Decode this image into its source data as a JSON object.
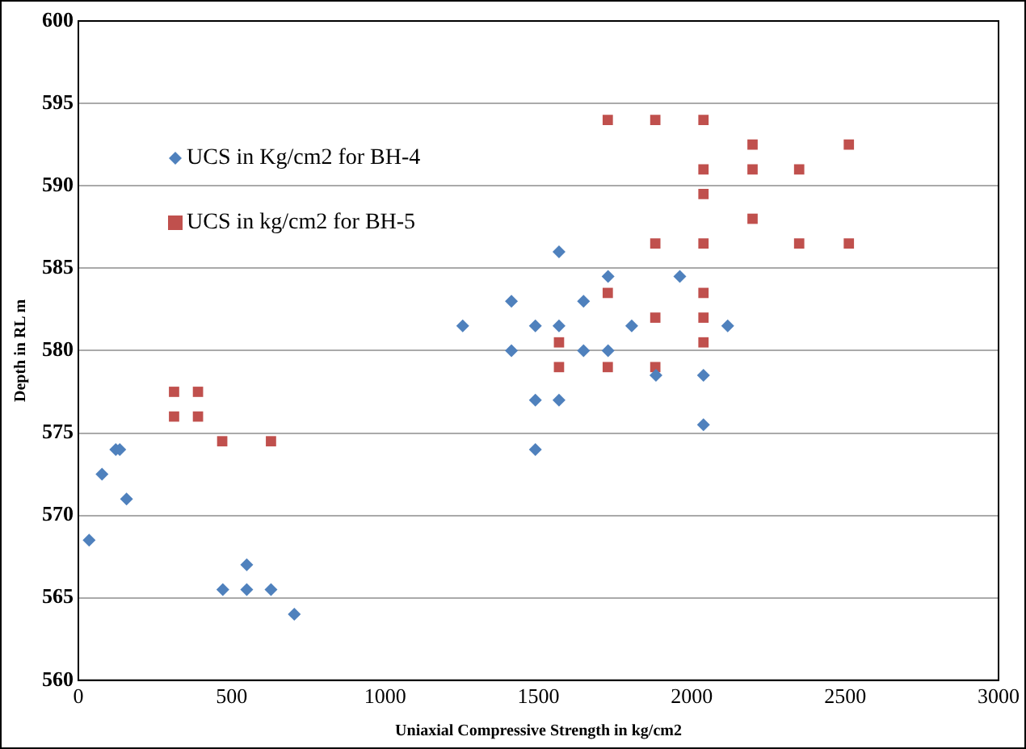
{
  "chart_data": {
    "type": "scatter",
    "xlabel": "Uniaxial Compressive Strength in kg/cm2",
    "ylabel": "Depth in RL m",
    "xlim": [
      0,
      3000
    ],
    "xticks": [
      0,
      500,
      1000,
      1500,
      2000,
      2500,
      3000
    ],
    "ylim": [
      560,
      600
    ],
    "yticks": [
      560,
      565,
      570,
      575,
      580,
      585,
      590,
      595,
      600
    ],
    "grid": "y",
    "legend": "top left",
    "series": [
      {
        "name": "UCS in Kg/cm2 for BH-4",
        "color": "#4f81bd",
        "marker": "diamond",
        "x": [
          35,
          77,
          122,
          135,
          157,
          471,
          549,
          549,
          628,
          704,
          1253,
          1412,
          1412,
          1490,
          1490,
          1490,
          1567,
          1567,
          1567,
          1647,
          1647,
          1727,
          1727,
          1804,
          1883,
          1961,
          2038,
          2038,
          2117
        ],
        "values": [
          568.5,
          572.5,
          574,
          574,
          571,
          565.5,
          567,
          565.5,
          565.5,
          564,
          581.5,
          583,
          580,
          581.5,
          577,
          574,
          586,
          581.5,
          577,
          583,
          580,
          584.5,
          580,
          581.5,
          578.5,
          584.5,
          578.5,
          575.5,
          581.5
        ]
      },
      {
        "name": "UCS in kg/cm2 for BH-5",
        "color": "#c0504d",
        "marker": "square",
        "x": [
          312,
          390,
          312,
          390,
          469,
          628,
          1726,
          1881,
          2038,
          2198,
          2512,
          2038,
          2198,
          2350,
          2038,
          2198,
          1881,
          2038,
          2350,
          2512,
          1726,
          2038,
          1881,
          2038,
          1567,
          2038,
          1567,
          1726,
          1881
        ],
        "values": [
          577.5,
          577.5,
          576,
          576,
          574.5,
          574.5,
          594,
          594,
          594,
          592.5,
          592.5,
          591,
          591,
          591,
          589.5,
          588,
          586.5,
          586.5,
          586.5,
          586.5,
          583.5,
          583.5,
          582,
          582,
          580.5,
          580.5,
          579,
          579,
          579
        ]
      }
    ]
  }
}
